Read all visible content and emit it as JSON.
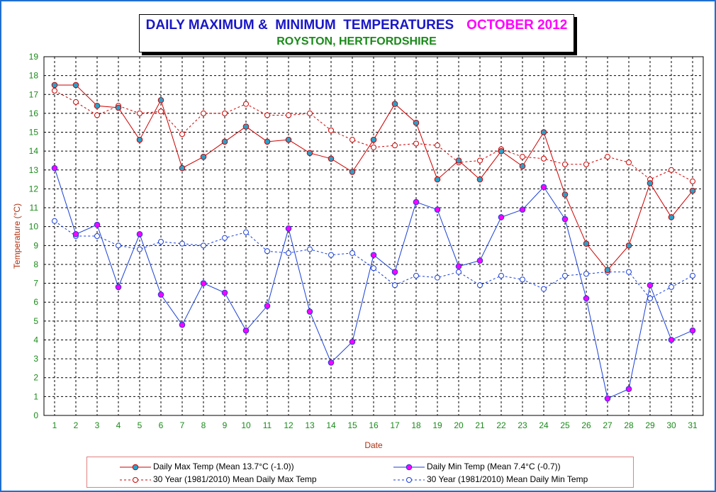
{
  "title": {
    "main": "DAILY MAXIMUM &  MINIMUM  TEMPERATURES",
    "month": "OCTOBER 2012",
    "subtitle": "ROYSTON, HERTFORDSHIRE"
  },
  "colors": {
    "max": "#cc0000",
    "min": "#1a3fd6",
    "max_marker": "#2aa0c8",
    "min_marker": "#ff00ff",
    "axis_label": "#b03010",
    "tick_label": "#1a8a1a"
  },
  "chart_data": {
    "type": "line",
    "xlabel": "Date",
    "ylabel": "Temperature (°C)",
    "x": [
      1,
      2,
      3,
      4,
      5,
      6,
      7,
      8,
      9,
      10,
      11,
      12,
      13,
      14,
      15,
      16,
      17,
      18,
      19,
      20,
      21,
      22,
      23,
      24,
      25,
      26,
      27,
      28,
      29,
      30,
      31
    ],
    "xlim": [
      1,
      31
    ],
    "ylim": [
      0,
      19
    ],
    "yticks": [
      0,
      1,
      2,
      3,
      4,
      5,
      6,
      7,
      8,
      9,
      10,
      11,
      12,
      13,
      14,
      15,
      16,
      17,
      18,
      19
    ],
    "grid": true,
    "legend_position": "bottom",
    "series": [
      {
        "name": "Daily Max Temp (Mean 13.7°C (-1.0))",
        "style": "max",
        "values": [
          17.5,
          17.5,
          16.4,
          16.3,
          14.6,
          16.7,
          13.1,
          13.7,
          14.5,
          15.3,
          14.5,
          14.6,
          13.9,
          13.6,
          12.9,
          14.6,
          16.5,
          15.5,
          12.5,
          13.5,
          12.5,
          14.0,
          13.2,
          15.0,
          11.7,
          9.1,
          7.7,
          9.0,
          12.3,
          10.5,
          11.9
        ]
      },
      {
        "name": "Daily Min Temp (Mean 7.4°C (-0.7))",
        "style": "min",
        "values": [
          13.1,
          9.6,
          10.1,
          6.8,
          9.6,
          6.4,
          4.8,
          7.0,
          6.5,
          4.5,
          5.8,
          9.9,
          5.5,
          2.8,
          3.9,
          8.5,
          7.6,
          11.3,
          10.9,
          7.9,
          8.2,
          10.5,
          10.9,
          12.1,
          10.4,
          6.2,
          0.9,
          1.4,
          6.9,
          4.0,
          4.5
        ]
      },
      {
        "name": "30 Year (1981/2010) Mean Daily Max Temp",
        "style": "max_mean",
        "values": [
          17.2,
          16.6,
          15.9,
          16.4,
          16.0,
          16.1,
          14.9,
          16.0,
          16.0,
          16.5,
          15.9,
          15.9,
          16.0,
          15.1,
          14.6,
          14.2,
          14.3,
          14.4,
          14.3,
          13.4,
          13.5,
          14.1,
          13.7,
          13.6,
          13.3,
          13.3,
          13.7,
          13.4,
          12.5,
          13.0,
          12.4
        ]
      },
      {
        "name": "30 Year (1981/2010) Mean Daily Min Temp",
        "style": "min_mean",
        "values": [
          10.3,
          9.5,
          9.5,
          9.0,
          8.8,
          9.2,
          9.1,
          9.0,
          9.4,
          9.7,
          8.7,
          8.6,
          8.8,
          8.5,
          8.6,
          7.8,
          6.9,
          7.4,
          7.3,
          7.6,
          6.9,
          7.4,
          7.2,
          6.7,
          7.4,
          7.5,
          7.6,
          7.6,
          6.2,
          6.8,
          7.4
        ]
      }
    ]
  }
}
